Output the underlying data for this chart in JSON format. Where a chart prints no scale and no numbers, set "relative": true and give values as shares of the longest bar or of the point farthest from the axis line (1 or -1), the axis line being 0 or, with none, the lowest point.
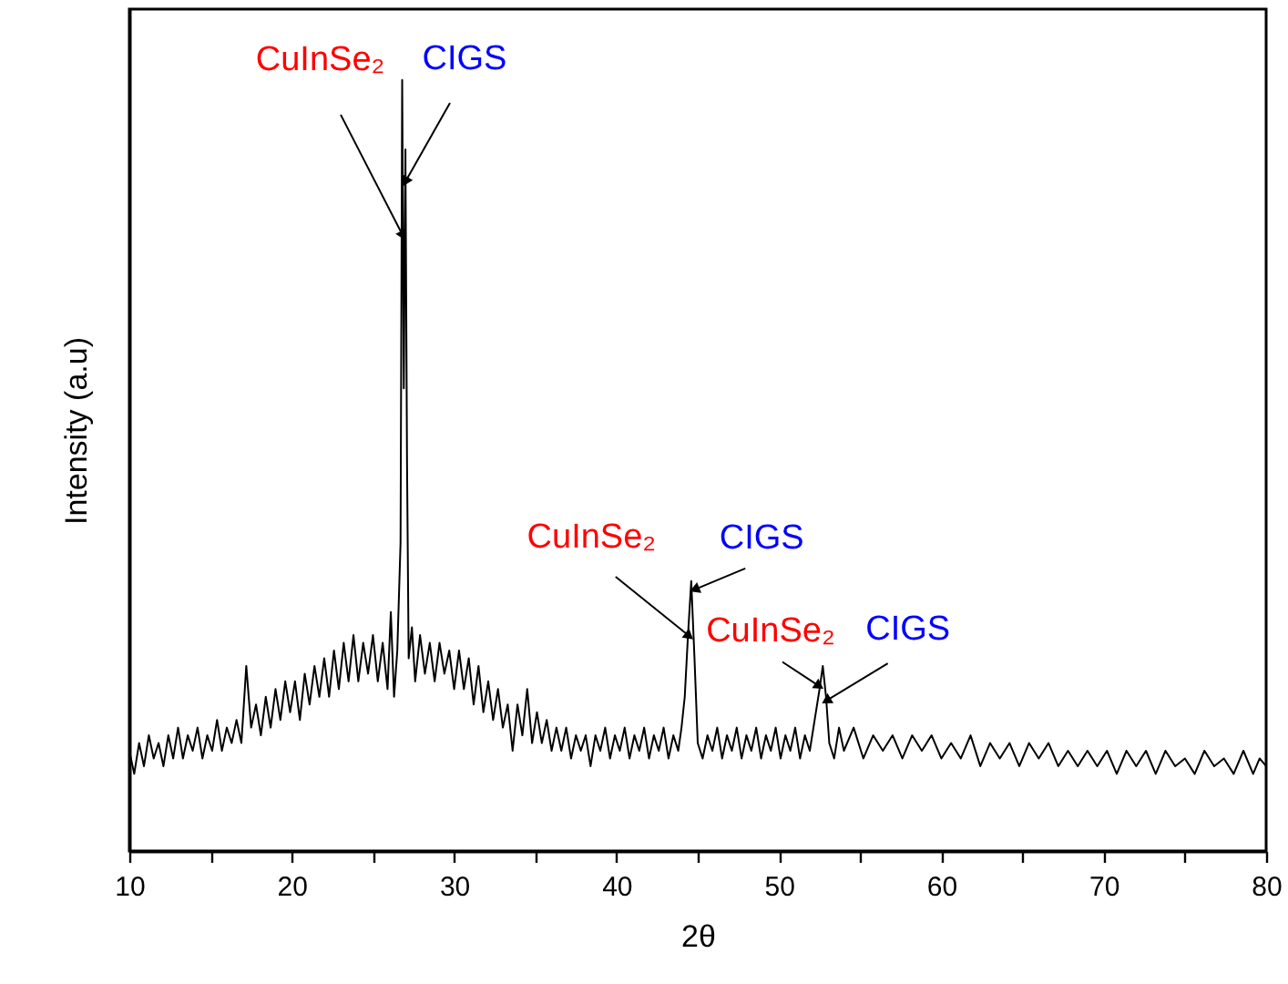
{
  "chart_data": {
    "type": "line",
    "relative": true,
    "xlabel": "2θ",
    "ylabel": "Intensity (a.u)",
    "xlim": [
      10,
      80
    ],
    "xticks": [
      10,
      {
        "value": 15,
        "label": null
      },
      20,
      {
        "value": 25,
        "label": null
      },
      30,
      {
        "value": 35,
        "label": null
      },
      40,
      {
        "value": 45,
        "label": null
      },
      50,
      {
        "value": 55,
        "label": null
      },
      60,
      {
        "value": 65,
        "label": null
      },
      70,
      {
        "value": 75,
        "label": null
      },
      80
    ],
    "grid": false,
    "marker": "none",
    "line_style": "solid",
    "series": [
      {
        "color": "#000000",
        "x": [
          10.0,
          10.3,
          10.6,
          10.9,
          11.2,
          11.5,
          11.8,
          12.1,
          12.4,
          12.7,
          13.0,
          13.3,
          13.6,
          13.9,
          14.2,
          14.5,
          14.8,
          15.1,
          15.4,
          15.7,
          16.0,
          16.3,
          16.6,
          16.9,
          17.2,
          17.5,
          17.8,
          18.1,
          18.4,
          18.7,
          19.0,
          19.3,
          19.6,
          19.9,
          20.2,
          20.5,
          20.8,
          21.1,
          21.4,
          21.7,
          22.0,
          22.3,
          22.6,
          22.9,
          23.2,
          23.5,
          23.8,
          24.1,
          24.4,
          24.7,
          25.0,
          25.3,
          25.6,
          25.9,
          26.1,
          26.3,
          26.5,
          26.7,
          26.8,
          26.9,
          27.0,
          27.1,
          27.2,
          27.4,
          27.6,
          27.9,
          28.2,
          28.5,
          28.8,
          29.1,
          29.4,
          29.7,
          30.0,
          30.3,
          30.6,
          30.9,
          31.2,
          31.5,
          31.8,
          32.1,
          32.4,
          32.7,
          33.0,
          33.3,
          33.6,
          33.9,
          34.2,
          34.5,
          34.8,
          35.1,
          35.4,
          35.7,
          36.0,
          36.3,
          36.6,
          36.9,
          37.2,
          37.5,
          37.8,
          38.1,
          38.4,
          38.7,
          39.0,
          39.3,
          39.6,
          39.9,
          40.2,
          40.5,
          40.8,
          41.1,
          41.4,
          41.7,
          42.0,
          42.3,
          42.6,
          42.9,
          43.2,
          43.5,
          43.8,
          44.0,
          44.2,
          44.4,
          44.6,
          44.8,
          45.0,
          45.3,
          45.6,
          45.9,
          46.2,
          46.5,
          46.8,
          47.1,
          47.4,
          47.7,
          48.0,
          48.3,
          48.6,
          48.9,
          49.2,
          49.5,
          49.8,
          50.1,
          50.4,
          50.7,
          51.0,
          51.3,
          51.6,
          51.9,
          52.2,
          52.5,
          52.7,
          52.9,
          53.1,
          53.4,
          53.7,
          54.0,
          54.6,
          55.2,
          55.8,
          56.4,
          57.0,
          57.6,
          58.2,
          58.8,
          59.4,
          60.0,
          60.6,
          61.2,
          61.8,
          62.4,
          63.0,
          63.6,
          64.2,
          64.8,
          65.4,
          66.0,
          66.6,
          67.2,
          67.8,
          68.4,
          69.0,
          69.6,
          70.2,
          70.8,
          71.4,
          72.0,
          72.6,
          73.2,
          73.8,
          74.4,
          75.0,
          75.6,
          76.2,
          76.8,
          77.4,
          78.0,
          78.6,
          79.2,
          79.6,
          80.0
        ],
        "values": [
          0.13,
          0.1,
          0.14,
          0.11,
          0.15,
          0.12,
          0.14,
          0.11,
          0.15,
          0.12,
          0.16,
          0.12,
          0.15,
          0.13,
          0.16,
          0.12,
          0.15,
          0.13,
          0.17,
          0.13,
          0.16,
          0.14,
          0.17,
          0.14,
          0.24,
          0.16,
          0.19,
          0.15,
          0.2,
          0.16,
          0.21,
          0.17,
          0.22,
          0.18,
          0.22,
          0.17,
          0.23,
          0.19,
          0.24,
          0.2,
          0.25,
          0.2,
          0.26,
          0.21,
          0.27,
          0.22,
          0.28,
          0.22,
          0.27,
          0.23,
          0.28,
          0.22,
          0.27,
          0.21,
          0.31,
          0.2,
          0.26,
          0.4,
          1.0,
          0.6,
          0.91,
          0.5,
          0.25,
          0.29,
          0.22,
          0.28,
          0.23,
          0.27,
          0.22,
          0.27,
          0.23,
          0.26,
          0.21,
          0.26,
          0.21,
          0.25,
          0.19,
          0.24,
          0.18,
          0.22,
          0.17,
          0.21,
          0.16,
          0.19,
          0.13,
          0.19,
          0.15,
          0.21,
          0.14,
          0.18,
          0.14,
          0.17,
          0.13,
          0.16,
          0.13,
          0.16,
          0.12,
          0.15,
          0.13,
          0.15,
          0.11,
          0.15,
          0.13,
          0.16,
          0.12,
          0.15,
          0.13,
          0.16,
          0.12,
          0.15,
          0.13,
          0.16,
          0.12,
          0.15,
          0.13,
          0.16,
          0.12,
          0.15,
          0.13,
          0.16,
          0.2,
          0.28,
          0.35,
          0.25,
          0.14,
          0.12,
          0.15,
          0.13,
          0.16,
          0.12,
          0.15,
          0.13,
          0.16,
          0.12,
          0.15,
          0.13,
          0.16,
          0.12,
          0.15,
          0.13,
          0.16,
          0.12,
          0.15,
          0.13,
          0.16,
          0.12,
          0.15,
          0.13,
          0.17,
          0.21,
          0.24,
          0.2,
          0.14,
          0.12,
          0.16,
          0.13,
          0.16,
          0.12,
          0.15,
          0.13,
          0.15,
          0.12,
          0.15,
          0.13,
          0.15,
          0.12,
          0.14,
          0.12,
          0.15,
          0.11,
          0.14,
          0.12,
          0.14,
          0.11,
          0.14,
          0.12,
          0.14,
          0.11,
          0.13,
          0.11,
          0.13,
          0.11,
          0.13,
          0.1,
          0.13,
          0.11,
          0.13,
          0.1,
          0.13,
          0.11,
          0.12,
          0.1,
          0.13,
          0.11,
          0.12,
          0.1,
          0.13,
          0.1,
          0.12,
          0.11
        ]
      }
    ],
    "annotations": [
      {
        "text": "CuInSe₂",
        "x": 26.8,
        "y": 0.8
      },
      {
        "text": "CIGS",
        "x": 27.05,
        "y": 0.87
      },
      {
        "text": "CuInSe₂",
        "x": 44.4,
        "y": 0.28
      },
      {
        "text": "CIGS",
        "x": 44.9,
        "y": 0.34
      },
      {
        "text": "CuInSe₂",
        "x": 52.4,
        "y": 0.215
      },
      {
        "text": "CIGS",
        "x": 53.0,
        "y": 0.196
      }
    ]
  }
}
